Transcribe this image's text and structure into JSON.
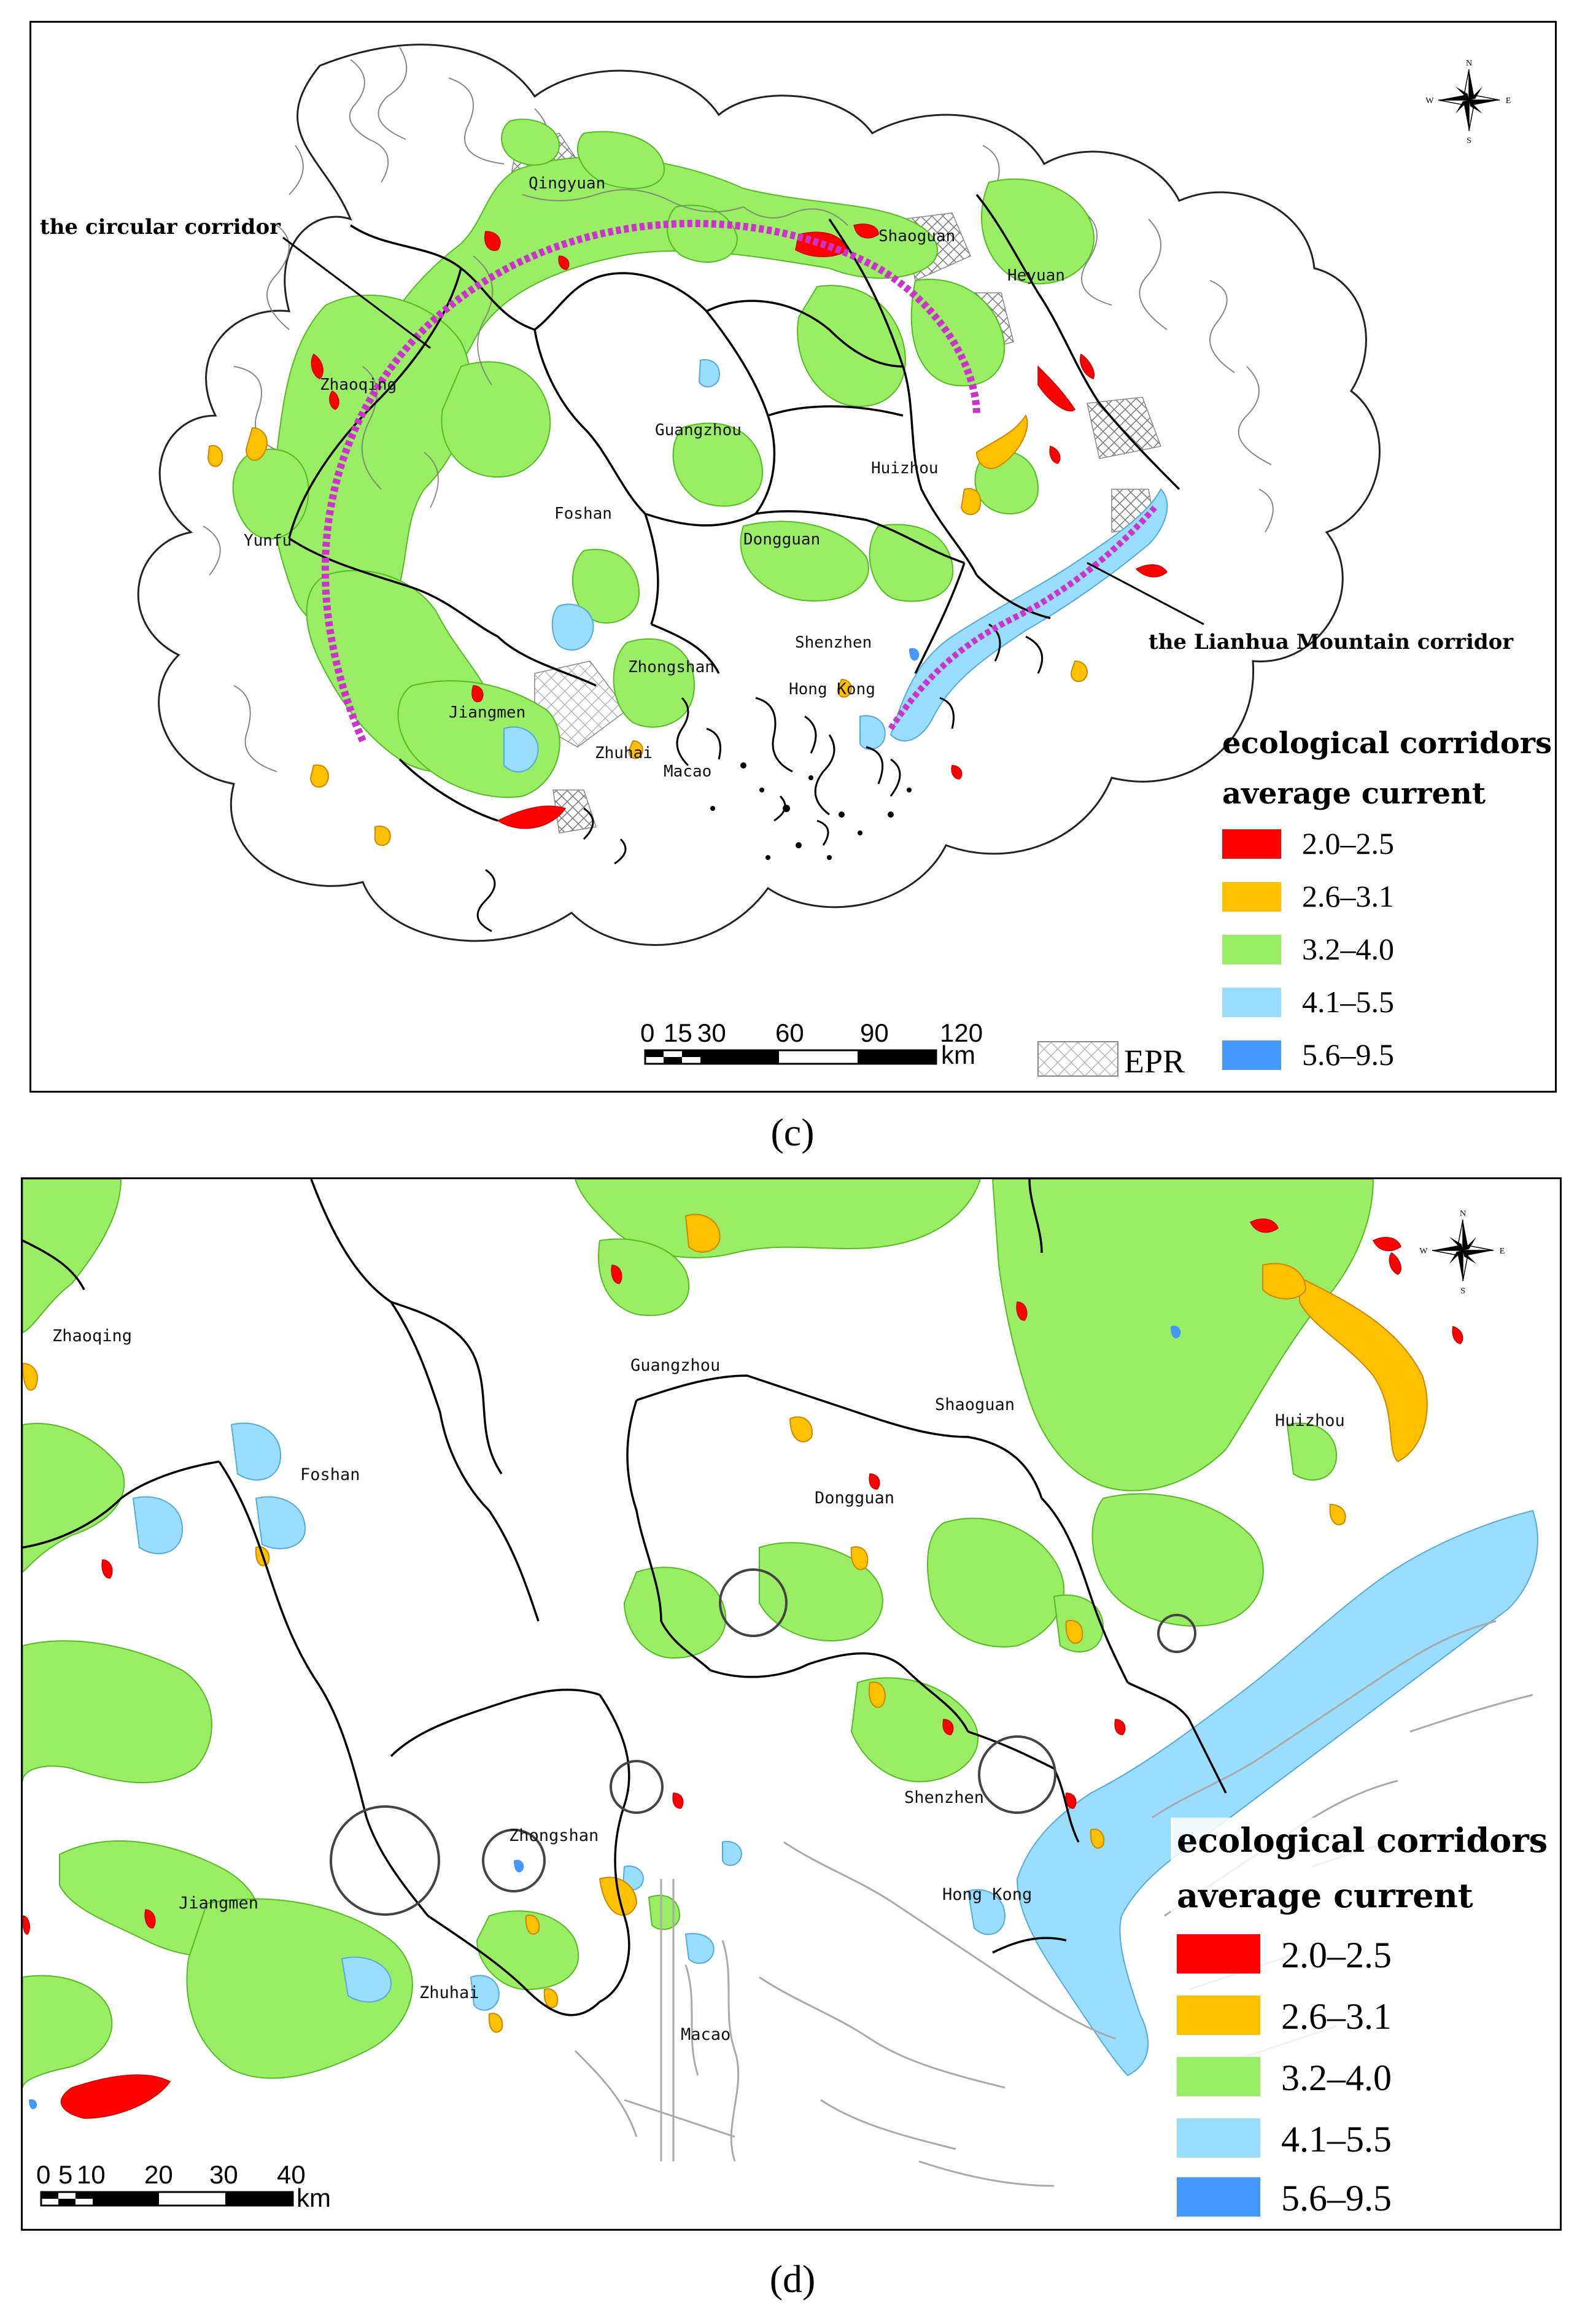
{
  "panels": [
    {
      "id": "c",
      "caption": "(c)",
      "places": [
        "Qingyuan",
        "Shaoguan",
        "Heyuan",
        "Zhaoqing",
        "Guangzhou",
        "Huizhou",
        "Foshan",
        "Yunfu",
        "Dongguan",
        "Shenzhen",
        "Zhongshan",
        "Hong Kong",
        "Jiangmen",
        "Zhuhai",
        "Macao"
      ],
      "callouts": {
        "circular": "the circular corridor",
        "lianhua": "the Lianhua Mountain corridor"
      },
      "legend": {
        "title_line1": "ecological corridors",
        "title_line2": "average current",
        "classes": [
          {
            "label": "2.0–2.5",
            "color": "#ff0000"
          },
          {
            "label": "2.6–3.1",
            "color": "#ffc000"
          },
          {
            "label": "3.2–4.0",
            "color": "#99ee66"
          },
          {
            "label": "4.1–5.5",
            "color": "#99ddff"
          },
          {
            "label": "5.6–9.5",
            "color": "#4499ff"
          }
        ],
        "epr_label": "EPR"
      },
      "scale": {
        "ticks": [
          "0",
          "15",
          "30",
          "60",
          "90",
          "120"
        ],
        "unit": "km"
      },
      "compass": {
        "n": "N",
        "s": "S",
        "e": "E",
        "w": "W"
      }
    },
    {
      "id": "d",
      "caption": "(d)",
      "places": [
        "Zhaoqing",
        "Guangzhou",
        "Shaoguan",
        "Huizhou",
        "Foshan",
        "Dongguan",
        "Shenzhen",
        "Zhongshan",
        "Jiangmen",
        "Hong Kong",
        "Zhuhai",
        "Macao"
      ],
      "legend": {
        "title_line1": "ecological corridors",
        "title_line2": "average current",
        "classes": [
          {
            "label": "2.0–2.5",
            "color": "#ff0000"
          },
          {
            "label": "2.6–3.1",
            "color": "#ffc000"
          },
          {
            "label": "3.2–4.0",
            "color": "#99ee66"
          },
          {
            "label": "4.1–5.5",
            "color": "#99ddff"
          },
          {
            "label": "5.6–9.5",
            "color": "#4499ff"
          }
        ]
      },
      "scale": {
        "ticks": [
          "0",
          "5",
          "10",
          "20",
          "30",
          "40"
        ],
        "unit": "km"
      },
      "compass": {
        "n": "N",
        "s": "S",
        "e": "E",
        "w": "W"
      }
    }
  ]
}
